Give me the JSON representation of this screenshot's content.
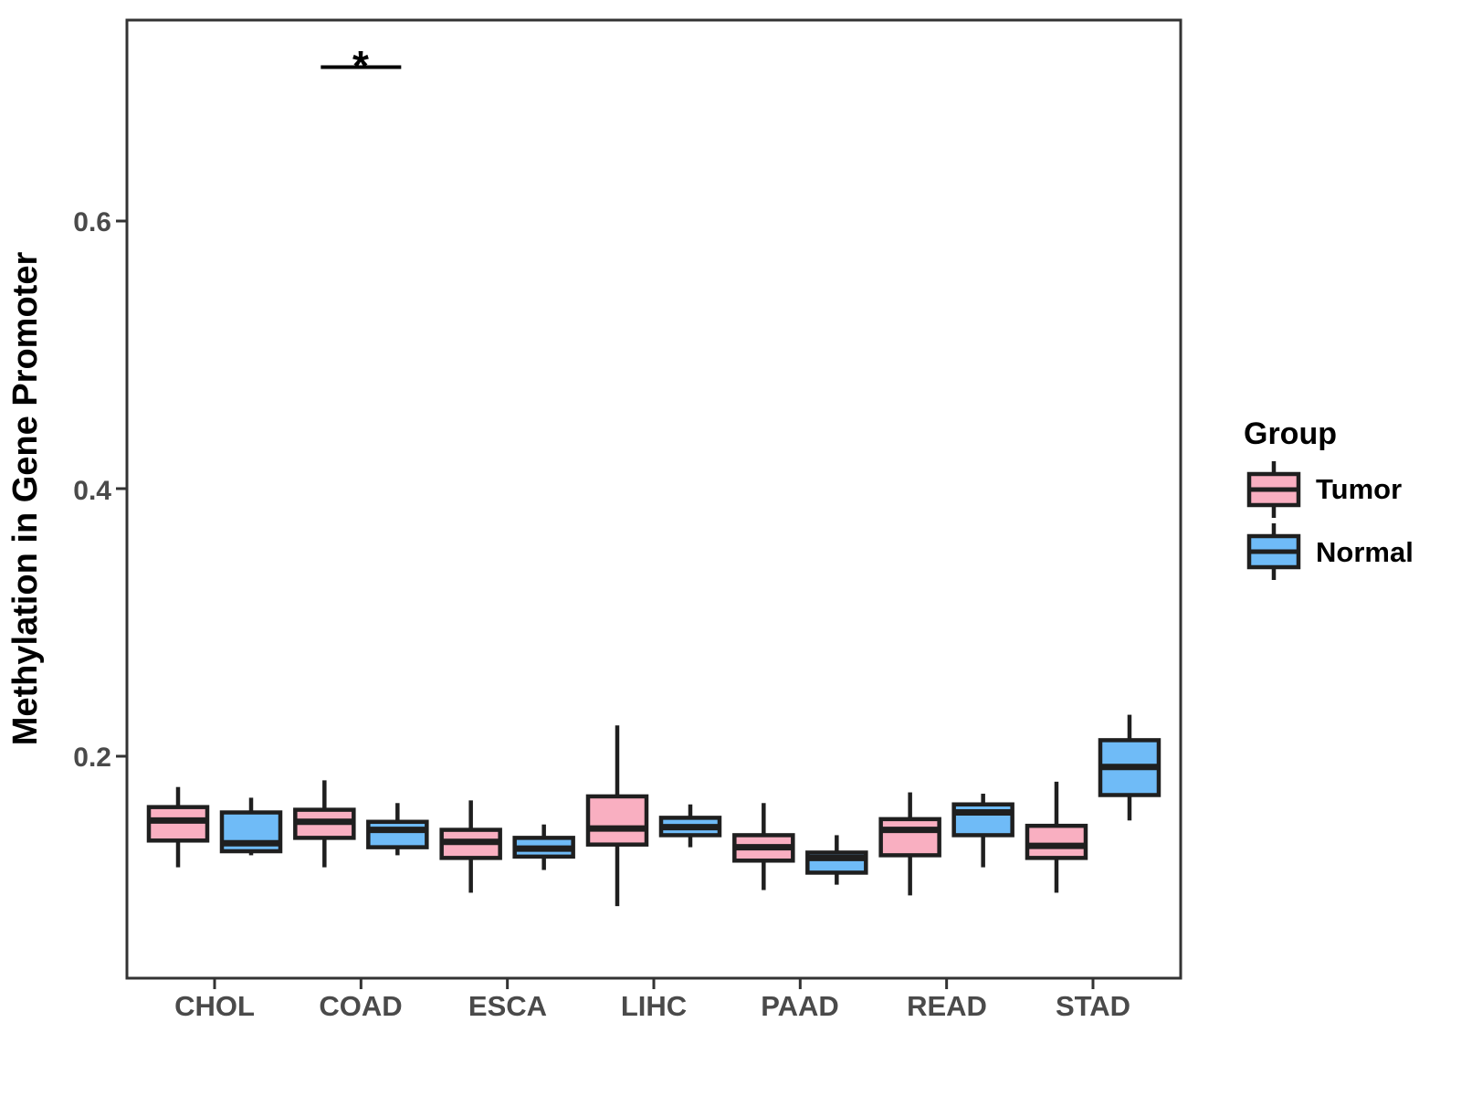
{
  "chart_data": {
    "type": "boxplot",
    "title": "",
    "xlabel": "",
    "ylabel": "Methylation in Gene Promoter",
    "categories": [
      "CHOL",
      "COAD",
      "ESCA",
      "LIHC",
      "PAAD",
      "READ",
      "STAD"
    ],
    "ylim": [
      0.034,
      0.75
    ],
    "yticks": [
      0.2,
      0.4,
      0.6
    ],
    "ytick_labels": [
      "0.2",
      "0.4",
      "0.6"
    ],
    "grid": false,
    "legend": {
      "title": "Group",
      "position": "right",
      "entries": [
        {
          "label": "Tumor",
          "color": "#F9AFC1"
        },
        {
          "label": "Normal",
          "color": "#6FBBF7"
        }
      ]
    },
    "series": [
      {
        "name": "Tumor",
        "color": "#F9AFC1",
        "boxes": [
          {
            "category": "CHOL",
            "low": 0.117,
            "q1": 0.137,
            "median": 0.152,
            "q3": 0.162,
            "high": 0.177
          },
          {
            "category": "COAD",
            "low": 0.117,
            "q1": 0.139,
            "median": 0.151,
            "q3": 0.16,
            "high": 0.182
          },
          {
            "category": "ESCA",
            "low": 0.098,
            "q1": 0.124,
            "median": 0.136,
            "q3": 0.145,
            "high": 0.167
          },
          {
            "category": "LIHC",
            "low": 0.088,
            "q1": 0.134,
            "median": 0.146,
            "q3": 0.17,
            "high": 0.223
          },
          {
            "category": "PAAD",
            "low": 0.1,
            "q1": 0.122,
            "median": 0.132,
            "q3": 0.141,
            "high": 0.165
          },
          {
            "category": "READ",
            "low": 0.096,
            "q1": 0.126,
            "median": 0.145,
            "q3": 0.153,
            "high": 0.173
          },
          {
            "category": "STAD",
            "low": 0.098,
            "q1": 0.124,
            "median": 0.133,
            "q3": 0.148,
            "high": 0.181
          }
        ]
      },
      {
        "name": "Normal",
        "color": "#6FBBF7",
        "boxes": [
          {
            "category": "CHOL",
            "low": 0.126,
            "q1": 0.129,
            "median": 0.135,
            "q3": 0.158,
            "high": 0.169
          },
          {
            "category": "COAD",
            "low": 0.126,
            "q1": 0.132,
            "median": 0.145,
            "q3": 0.151,
            "high": 0.165
          },
          {
            "category": "ESCA",
            "low": 0.115,
            "q1": 0.125,
            "median": 0.131,
            "q3": 0.139,
            "high": 0.149
          },
          {
            "category": "LIHC",
            "low": 0.132,
            "q1": 0.141,
            "median": 0.147,
            "q3": 0.154,
            "high": 0.164
          },
          {
            "category": "PAAD",
            "low": 0.104,
            "q1": 0.113,
            "median": 0.124,
            "q3": 0.128,
            "high": 0.141
          },
          {
            "category": "READ",
            "low": 0.117,
            "q1": 0.141,
            "median": 0.158,
            "q3": 0.164,
            "high": 0.172
          },
          {
            "category": "STAD",
            "low": 0.152,
            "q1": 0.171,
            "median": 0.192,
            "q3": 0.212,
            "high": 0.231
          }
        ]
      }
    ],
    "annotation": {
      "label": "*",
      "category": "COAD",
      "y": 0.715
    },
    "colors": {
      "tumor": "#F9AFC1",
      "normal": "#6FBBF7",
      "stroke": "#1F1F1F",
      "axis": "#333333",
      "tick_label": "#4A4A4A"
    }
  }
}
